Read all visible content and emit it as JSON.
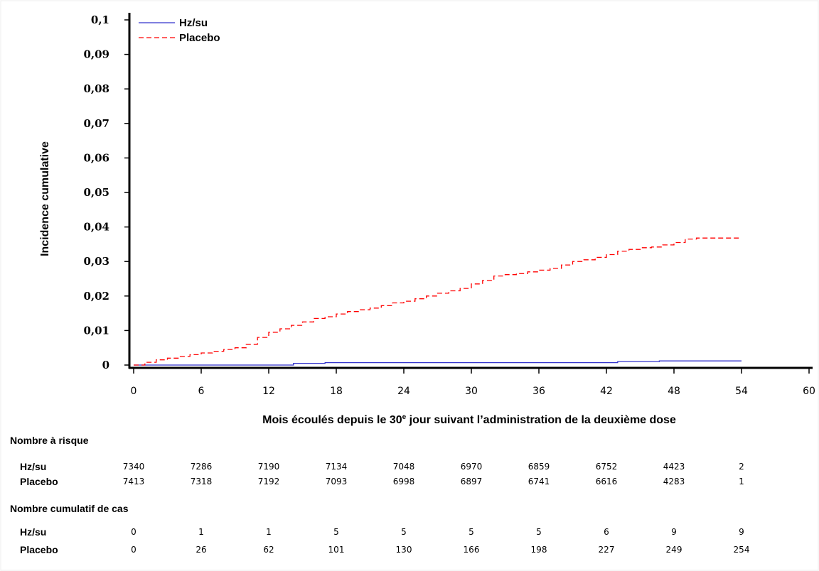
{
  "chart_data": {
    "type": "line",
    "ylabel": "Incidence cumulative",
    "xlabel_parts": [
      "Mois écoulés depuis le 30",
      "e",
      " jour suivant l’administration de la deuxième dose"
    ],
    "x_ticks": [
      "0",
      "6",
      "12",
      "18",
      "24",
      "30",
      "36",
      "42",
      "48",
      "54",
      "60"
    ],
    "y_ticks": [
      "0",
      "0,01",
      "0,02",
      "0,03",
      "0,04",
      "0,05",
      "0,06",
      "0,07",
      "0,08",
      "0,09",
      "0,1"
    ],
    "xlim": [
      0,
      60
    ],
    "ylim": [
      0,
      0.1
    ],
    "legend_position": "top-left",
    "series": [
      {
        "name": "Hz/su",
        "color": "#3333cc",
        "style": "solid",
        "x": [
          0,
          14,
          14.2,
          16.8,
          17,
          42.8,
          43,
          46.5,
          46.7,
          54
        ],
        "y": [
          0,
          0,
          0.0005,
          0.0005,
          0.0007,
          0.0007,
          0.001,
          0.001,
          0.0012,
          0.0012
        ]
      },
      {
        "name": "Placebo",
        "color": "#ff0000",
        "style": "dashed",
        "x": [
          0,
          1,
          2,
          3,
          4,
          5,
          6,
          7,
          8,
          9,
          10,
          11,
          12,
          13,
          14,
          15,
          16,
          17,
          18,
          19,
          20,
          21,
          22,
          23,
          24,
          25,
          26,
          27,
          28,
          29,
          30,
          31,
          32,
          33,
          34,
          35,
          36,
          37,
          38,
          39,
          40,
          41,
          42,
          43,
          44,
          45,
          46,
          47,
          48,
          49,
          50,
          51,
          52,
          53,
          54
        ],
        "y": [
          0,
          0.0008,
          0.0015,
          0.002,
          0.0025,
          0.003,
          0.0035,
          0.004,
          0.0045,
          0.005,
          0.006,
          0.008,
          0.0095,
          0.0105,
          0.0115,
          0.0125,
          0.0135,
          0.014,
          0.0148,
          0.0155,
          0.016,
          0.0165,
          0.0172,
          0.018,
          0.0185,
          0.0192,
          0.02,
          0.0208,
          0.0215,
          0.0222,
          0.0235,
          0.0245,
          0.0258,
          0.0262,
          0.0265,
          0.027,
          0.0275,
          0.028,
          0.029,
          0.03,
          0.0305,
          0.0312,
          0.032,
          0.033,
          0.0335,
          0.034,
          0.0342,
          0.0348,
          0.0355,
          0.0365,
          0.0368,
          0.0368,
          0.0368,
          0.0368,
          0.0368
        ]
      }
    ]
  },
  "risk_table": {
    "title": "Nombre à risque",
    "rows": [
      {
        "label": "Hz/su",
        "values": [
          "7340",
          "7286",
          "7190",
          "7134",
          "7048",
          "6970",
          "6859",
          "6752",
          "4423",
          "2"
        ]
      },
      {
        "label": "Placebo",
        "values": [
          "7413",
          "7318",
          "7192",
          "7093",
          "6998",
          "6897",
          "6741",
          "6616",
          "4283",
          "1"
        ]
      }
    ]
  },
  "cases_table": {
    "title": "Nombre cumulatif de cas",
    "rows": [
      {
        "label": "Hz/su",
        "values": [
          "0",
          "1",
          "1",
          "5",
          "5",
          "5",
          "5",
          "6",
          "9",
          "9"
        ]
      },
      {
        "label": "Placebo",
        "values": [
          "0",
          "26",
          "62",
          "101",
          "130",
          "166",
          "198",
          "227",
          "249",
          "254"
        ]
      }
    ]
  }
}
